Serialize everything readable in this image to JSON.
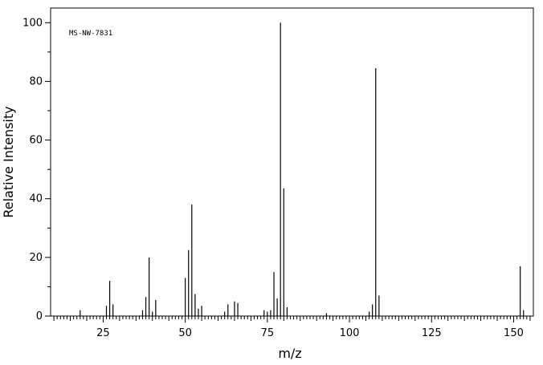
{
  "chart_data": {
    "type": "bar",
    "title": "MS-NW-7831",
    "xlabel": "m/z",
    "ylabel": "Relative Intensity",
    "xlim": [
      9,
      156
    ],
    "ylim": [
      0,
      105
    ],
    "x_ticks": [
      25,
      50,
      75,
      100,
      125,
      150
    ],
    "y_ticks": [
      0,
      20,
      40,
      60,
      80,
      100
    ],
    "grid": false,
    "series": [
      {
        "peaks": [
          [
            18,
            2
          ],
          [
            26,
            3.5
          ],
          [
            27,
            12
          ],
          [
            28,
            4
          ],
          [
            37,
            2
          ],
          [
            38,
            6.5
          ],
          [
            39,
            20
          ],
          [
            40,
            1.5
          ],
          [
            41,
            5.5
          ],
          [
            50,
            13
          ],
          [
            51,
            22.5
          ],
          [
            52,
            38
          ],
          [
            53,
            7.5
          ],
          [
            54,
            2.5
          ],
          [
            55,
            3.5
          ],
          [
            62,
            1.5
          ],
          [
            63,
            4
          ],
          [
            65,
            5
          ],
          [
            66,
            4.5
          ],
          [
            74,
            2
          ],
          [
            75,
            1.5
          ],
          [
            76,
            2
          ],
          [
            77,
            15
          ],
          [
            78,
            6
          ],
          [
            79,
            100
          ],
          [
            80,
            43.5
          ],
          [
            81,
            3
          ],
          [
            93,
            1
          ],
          [
            106,
            1.5
          ],
          [
            107,
            4
          ],
          [
            108,
            84.5
          ],
          [
            109,
            7
          ],
          [
            152,
            17
          ],
          [
            153,
            2
          ]
        ]
      }
    ]
  }
}
